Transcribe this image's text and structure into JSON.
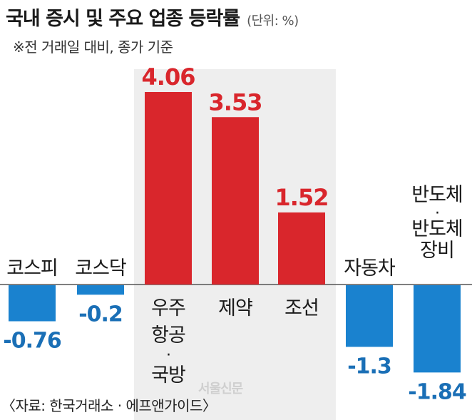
{
  "header": {
    "title": "국내 증시 및 주요 업종 등락률",
    "unit": "(단위: %)",
    "subtitle": "※전 거래일 대비, 종가 기준"
  },
  "footer": {
    "source": "〈자료: 한국거래소 · 에프앤가이드〉"
  },
  "logo_text": "서울신문",
  "colors": {
    "positive": "#d9262c",
    "negative": "#1a82cf",
    "positive_label": "#d9262c",
    "negative_label": "#1a6fb6",
    "highlight_band": "#eeeeee",
    "baseline": "#555555"
  },
  "chart_data": {
    "type": "bar",
    "categories": [
      [
        "코스피"
      ],
      [
        "코스닥"
      ],
      [
        "우주",
        "항공",
        "·",
        "국방"
      ],
      [
        "제약"
      ],
      [
        "조선"
      ],
      [
        "자동차"
      ],
      [
        "반도체",
        "·",
        "반도체",
        "장비"
      ]
    ],
    "values": [
      -0.76,
      -0.2,
      4.06,
      3.53,
      1.52,
      -1.3,
      -1.84
    ],
    "value_labels": [
      "-0.76",
      "-0.2",
      "4.06",
      "3.53",
      "1.52",
      "-1.3",
      "-1.84"
    ],
    "highlighted": [
      2,
      3,
      4
    ],
    "baseline": 0
  }
}
